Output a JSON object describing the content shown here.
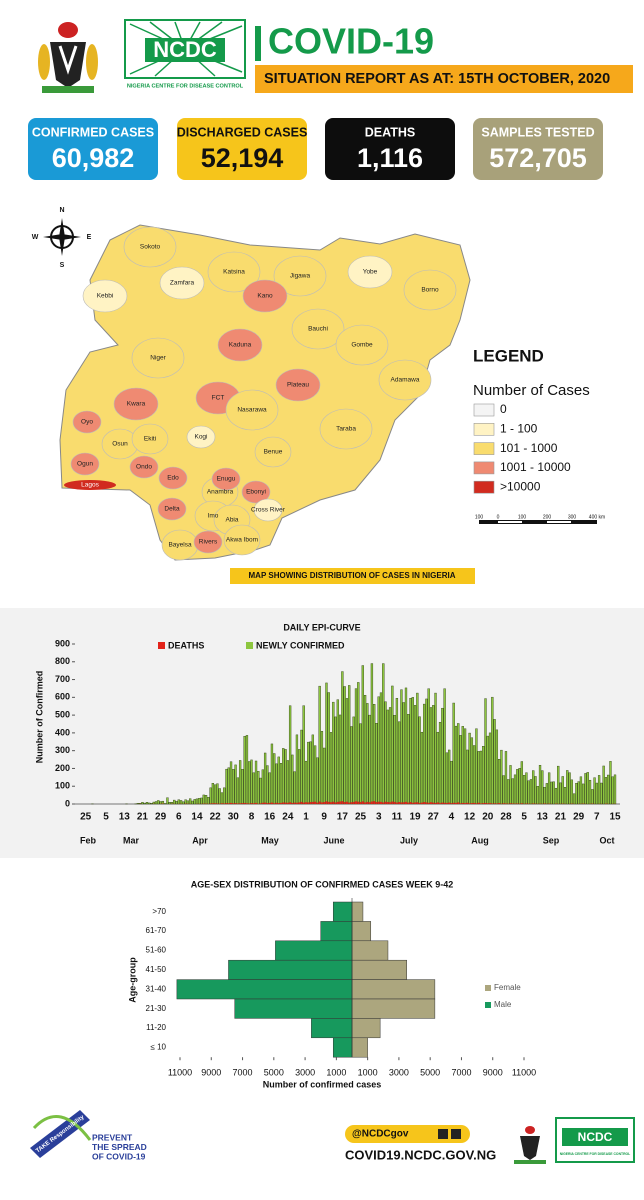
{
  "header": {
    "logo_text": "NCDC",
    "logo_subtitle": "NIGERIA CENTRE FOR DISEASE CONTROL",
    "title": "COVID-19",
    "subtitle": "SITUATION REPORT AS AT: 15TH OCTOBER, 2020"
  },
  "stats": [
    {
      "label": "CONFIRMED CASES",
      "value": "60,982",
      "color": "#1a9ad6",
      "text_color": "#ffffff"
    },
    {
      "label": "DISCHARGED CASES",
      "value": "52,194",
      "color": "#f6c51b",
      "text_color": "#111111"
    },
    {
      "label": "DEATHS",
      "value": "1,116",
      "color": "#0d0d0d",
      "text_color": "#ffffff"
    },
    {
      "label": "SAMPLES TESTED",
      "value": "572,705",
      "color": "#a8a17a",
      "text_color": "#ffffff"
    }
  ],
  "map": {
    "compass": {
      "n": "N",
      "s": "S",
      "e": "E",
      "w": "W"
    },
    "states": [
      {
        "name": "Sokoto",
        "color": "#f9dc6e"
      },
      {
        "name": "Kebbi",
        "color": "#fff3c4"
      },
      {
        "name": "Zamfara",
        "color": "#fff3c4"
      },
      {
        "name": "Katsina",
        "color": "#f9dc6e"
      },
      {
        "name": "Jigawa",
        "color": "#f9dc6e"
      },
      {
        "name": "Yobe",
        "color": "#fff3c4"
      },
      {
        "name": "Borno",
        "color": "#f9dc6e"
      },
      {
        "name": "Kano",
        "color": "#ef8a72"
      },
      {
        "name": "Kaduna",
        "color": "#ef8a72"
      },
      {
        "name": "Bauchi",
        "color": "#f9dc6e"
      },
      {
        "name": "Gombe",
        "color": "#f9dc6e"
      },
      {
        "name": "Niger",
        "color": "#f9dc6e"
      },
      {
        "name": "FCT",
        "color": "#ef8a72"
      },
      {
        "name": "Plateau",
        "color": "#ef8a72"
      },
      {
        "name": "Nasarawa",
        "color": "#f9dc6e"
      },
      {
        "name": "Adamawa",
        "color": "#f9dc6e"
      },
      {
        "name": "Taraba",
        "color": "#f9dc6e"
      },
      {
        "name": "Kwara",
        "color": "#ef8a72"
      },
      {
        "name": "Oyo",
        "color": "#ef8a72"
      },
      {
        "name": "Osun",
        "color": "#f9dc6e"
      },
      {
        "name": "Ekiti",
        "color": "#f9dc6e"
      },
      {
        "name": "Kogi",
        "color": "#fff3c4"
      },
      {
        "name": "Benue",
        "color": "#f9dc6e"
      },
      {
        "name": "Ogun",
        "color": "#ef8a72"
      },
      {
        "name": "Lagos",
        "color": "#d12b1f"
      },
      {
        "name": "Ondo",
        "color": "#ef8a72"
      },
      {
        "name": "Edo",
        "color": "#ef8a72"
      },
      {
        "name": "Delta",
        "color": "#ef8a72"
      },
      {
        "name": "Anambra",
        "color": "#f9dc6e"
      },
      {
        "name": "Enugu",
        "color": "#ef8a72"
      },
      {
        "name": "Ebonyi",
        "color": "#ef8a72"
      },
      {
        "name": "Imo",
        "color": "#f9dc6e"
      },
      {
        "name": "Abia",
        "color": "#f9dc6e"
      },
      {
        "name": "Cross River",
        "color": "#fff3c4"
      },
      {
        "name": "Bayelsa",
        "color": "#f9dc6e"
      },
      {
        "name": "Rivers",
        "color": "#ef8a72"
      },
      {
        "name": "Akwa Ibom",
        "color": "#f9dc6e"
      }
    ],
    "legend": {
      "title": "LEGEND",
      "subtitle": "Number of Cases",
      "items": [
        {
          "label": "0",
          "color": "#f4f4f4"
        },
        {
          "label": "1 - 100",
          "color": "#fff3c4"
        },
        {
          "label": "101 - 1000",
          "color": "#f9dc6e"
        },
        {
          "label": "1001 - 10000",
          "color": "#ef8a72"
        },
        {
          "label": ">10000",
          "color": "#d12b1f"
        }
      ]
    },
    "scale": [
      "100",
      "0",
      "100",
      "200",
      "300",
      "400 km"
    ],
    "caption": "MAP SHOWING DISTRIBUTION OF CASES IN NIGERIA"
  },
  "chart_data": [
    {
      "type": "bar",
      "title": "DAILY EPI-CURVE",
      "y_label": "Number of Confirmed",
      "categories": [
        "25",
        null,
        null,
        null,
        null,
        null,
        null,
        null,
        null,
        "5",
        null,
        null,
        null,
        null,
        null,
        null,
        null,
        "13",
        null,
        null,
        null,
        null,
        null,
        null,
        null,
        "21",
        null,
        null,
        null,
        null,
        null,
        null,
        null,
        "29",
        null,
        null,
        null,
        null,
        null,
        null,
        null,
        "6",
        null,
        null,
        null,
        null,
        null,
        null,
        null,
        "14",
        null,
        null,
        null,
        null,
        null,
        null,
        null,
        "22",
        null,
        null,
        null,
        null,
        null,
        null,
        null,
        "30",
        null,
        null,
        null,
        null,
        null,
        null,
        null,
        "8",
        null,
        null,
        null,
        null,
        null,
        null,
        null,
        "16",
        null,
        null,
        null,
        null,
        null,
        null,
        null,
        "24",
        null,
        null,
        null,
        null,
        null,
        null,
        null,
        "1",
        null,
        null,
        null,
        null,
        null,
        null,
        null,
        "9",
        null,
        null,
        null,
        null,
        null,
        null,
        null,
        "17",
        null,
        null,
        null,
        null,
        null,
        null,
        null,
        "25",
        null,
        null,
        null,
        null,
        null,
        null,
        null,
        "3",
        null,
        null,
        null,
        null,
        null,
        null,
        null,
        "11",
        null,
        null,
        null,
        null,
        null,
        null,
        null,
        "19",
        null,
        null,
        null,
        null,
        null,
        null,
        null,
        "27",
        null,
        null,
        null,
        null,
        null,
        null,
        null,
        "4",
        null,
        null,
        null,
        null,
        null,
        null,
        null,
        "12",
        null,
        null,
        null,
        null,
        null,
        null,
        null,
        "20",
        null,
        null,
        null,
        null,
        null,
        null,
        null,
        "28",
        null,
        null,
        null,
        null,
        null,
        null,
        null,
        "5",
        null,
        null,
        null,
        null,
        null,
        null,
        null,
        "13",
        null,
        null,
        null,
        null,
        null,
        null,
        null,
        "21",
        null,
        null,
        null,
        null,
        null,
        null,
        null,
        "29",
        null,
        null,
        null,
        null,
        null,
        null,
        null,
        "7",
        null,
        null,
        null,
        null,
        null,
        null,
        null,
        "15"
      ],
      "month_labels": [
        "Feb",
        "Mar",
        "Apr",
        "May",
        "June",
        "July",
        "Aug",
        "Sep",
        "Oct"
      ],
      "series": [
        {
          "name": "NEWLY CONFIRMED",
          "color": "#8dc63f",
          "values": [
            0,
            0,
            0,
            1,
            0,
            0,
            0,
            0,
            0,
            0,
            0,
            0,
            0,
            0,
            0,
            0,
            0,
            0,
            1,
            0,
            0,
            0,
            1,
            4,
            4,
            10,
            5,
            10,
            6,
            4,
            11,
            14,
            20,
            14,
            16,
            3,
            35,
            10,
            10,
            22,
            15,
            24,
            20,
            13,
            24,
            18,
            30,
            17,
            26,
            29,
            32,
            34,
            51,
            49,
            38,
            91,
            117,
            108,
            114,
            87,
            64,
            91,
            196,
            204,
            238,
            195,
            220,
            148,
            245,
            195,
            381,
            386,
            239,
            248,
            176,
            242,
            184,
            146,
            193,
            287,
            216,
            176,
            338,
            284,
            226,
            265,
            229,
            313,
            307,
            245,
            553,
            276,
            182,
            389,
            307,
            416,
            553,
            241,
            348,
            350,
            389,
            328,
            260,
            663,
            409,
            315,
            681,
            627,
            403,
            573,
            490,
            587,
            501,
            745,
            661,
            594,
            667,
            436,
            490,
            649,
            684,
            452,
            779,
            612,
            566,
            500,
            790,
            561,
            454,
            603,
            626,
            790,
            575,
            529,
            543,
            664,
            499,
            595,
            463,
            643,
            571,
            653,
            505,
            595,
            600,
            555,
            624,
            491,
            404,
            562,
            591,
            648,
            543,
            555,
            624,
            404,
            460,
            539,
            648,
            288,
            304,
            241,
            568,
            438,
            453,
            386,
            437,
            423,
            304,
            399,
            373,
            329,
            423,
            296,
            298,
            325,
            593,
            382,
            400,
            601,
            476,
            417,
            252,
            303,
            160,
            296,
            138,
            217,
            143,
            164,
            195,
            201,
            239,
            162,
            176,
            131,
            138,
            188,
            155,
            100,
            218,
            188,
            94,
            116,
            176,
            124,
            125,
            89,
            213,
            119,
            155,
            94,
            189,
            176,
            136,
            58,
            117,
            126,
            153,
            113,
            172,
            178,
            134,
            82,
            148,
            118,
            161,
            118,
            214,
            150,
            163,
            240,
            153,
            164
          ]
        },
        {
          "name": "DEATHS",
          "color": "#e2231a",
          "values": [
            0,
            0,
            0,
            0,
            0,
            0,
            0,
            0,
            0,
            0,
            0,
            0,
            0,
            0,
            0,
            0,
            0,
            0,
            0,
            0,
            0,
            0,
            0,
            0,
            1,
            0,
            0,
            0,
            0,
            0,
            1,
            0,
            0,
            1,
            2,
            0,
            0,
            0,
            1,
            1,
            0,
            1,
            1,
            0,
            2,
            1,
            1,
            0,
            0,
            1,
            1,
            1,
            2,
            2,
            1,
            3,
            4,
            4,
            3,
            2,
            4,
            3,
            5,
            4,
            6,
            4,
            5,
            3,
            4,
            5,
            6,
            4,
            3,
            5,
            4,
            6,
            2,
            4,
            7,
            8,
            5,
            6,
            8,
            4,
            7,
            5,
            6,
            9,
            8,
            7,
            10,
            6,
            8,
            7,
            9,
            12,
            8,
            10,
            9,
            11,
            12,
            13,
            8,
            14,
            9,
            11,
            15,
            12,
            10,
            13,
            9,
            12,
            14,
            16,
            11,
            13,
            8,
            10,
            12,
            15,
            13,
            11,
            15,
            9,
            12,
            10,
            14,
            16,
            11,
            13,
            12,
            9,
            13,
            11,
            10,
            14,
            12,
            8,
            11,
            9,
            10,
            12,
            8,
            11,
            7,
            9,
            10,
            6,
            8,
            11,
            9,
            7,
            10,
            8,
            6,
            9,
            5,
            8,
            7,
            6,
            8,
            5,
            7,
            6,
            9,
            4,
            6,
            5,
            7,
            4,
            5,
            6,
            4,
            7,
            3,
            5,
            6,
            4,
            5,
            3,
            4,
            3,
            5,
            2,
            4,
            3,
            2,
            4,
            3,
            2,
            3,
            2,
            4,
            1,
            3,
            2,
            1,
            3,
            2,
            1,
            2,
            1,
            3,
            1,
            2,
            1,
            0,
            2,
            1,
            1,
            2,
            1,
            0,
            1,
            2,
            1,
            0,
            1,
            1,
            2,
            1,
            0,
            1,
            2,
            1,
            0,
            1,
            1,
            0,
            2,
            1,
            0,
            1,
            1
          ]
        }
      ],
      "ylim": [
        0,
        900
      ],
      "yticks": [
        0,
        100,
        200,
        300,
        400,
        500,
        600,
        700,
        800,
        900
      ]
    },
    {
      "type": "pyramid",
      "title": "AGE-SEX DISTRIBUTION OF CONFIRMED CASES WEEK 9-42",
      "x_label": "Number of confirmed cases",
      "y_label": "Age-group",
      "categories": [
        ">70",
        "61-70",
        "51-60",
        "41-50",
        "31-40",
        "21-30",
        "11-20",
        "≤ 10"
      ],
      "series": [
        {
          "name": "Female",
          "color": "#aca67e",
          "side": "right",
          "values": [
            700,
            1200,
            2300,
            3500,
            5300,
            5300,
            1800,
            1000
          ]
        },
        {
          "name": "Male",
          "color": "#17995d",
          "side": "left",
          "values": [
            1200,
            2000,
            4900,
            7900,
            11200,
            7500,
            2600,
            1200
          ]
        }
      ],
      "xlim": [
        -11000,
        11000
      ],
      "xticks": [
        {
          "value": -11000,
          "label": "11000"
        },
        {
          "value": -9000,
          "label": "9000"
        },
        {
          "value": -7000,
          "label": "7000"
        },
        {
          "value": -5000,
          "label": "5000"
        },
        {
          "value": -3000,
          "label": "3000"
        },
        {
          "value": -1000,
          "label": "1000"
        },
        1000,
        3000,
        5000,
        7000,
        9000,
        11000
      ]
    }
  ],
  "footer": {
    "badge": "TAKE Responsibility",
    "slogan": [
      "PREVENT",
      "THE SPREAD",
      "OF COVID-19"
    ],
    "handle": "@NCDCgov",
    "website": "COVID19.NCDC.GOV.NG"
  }
}
